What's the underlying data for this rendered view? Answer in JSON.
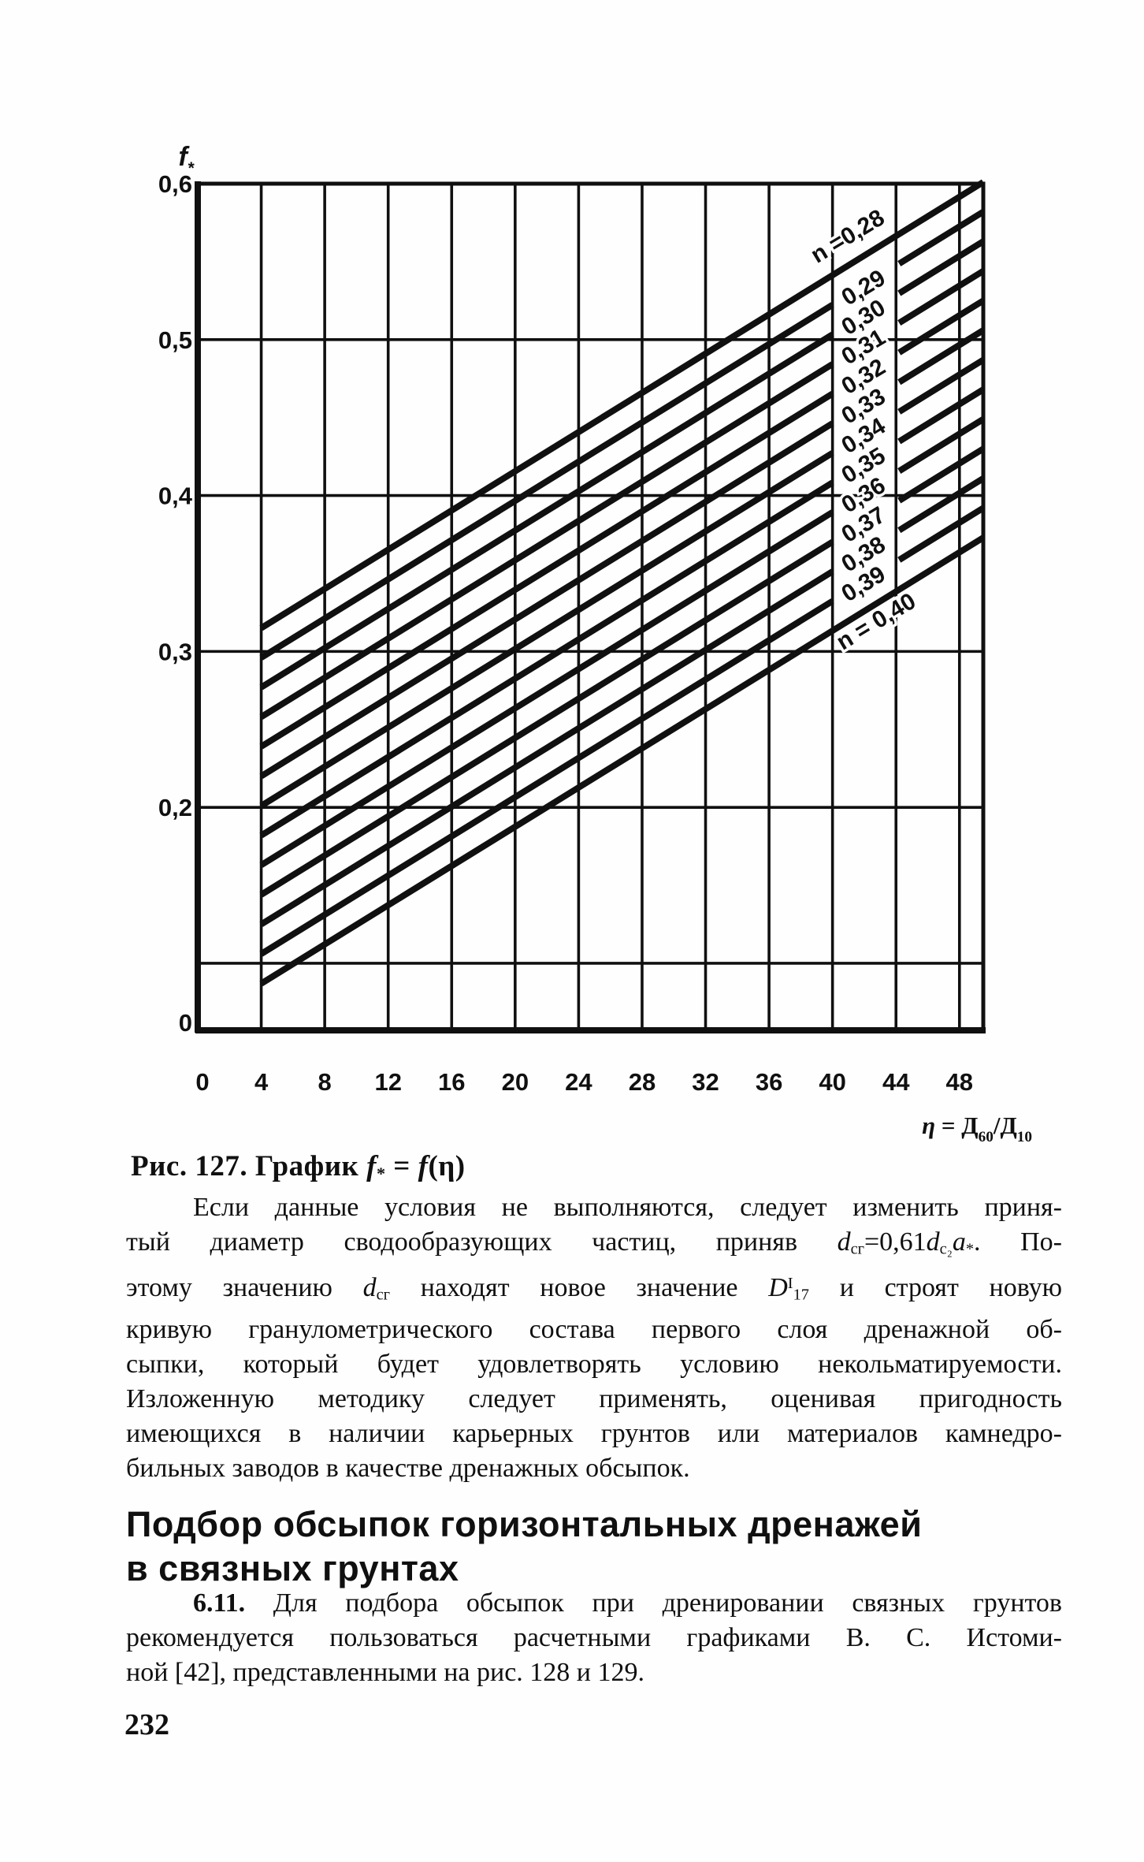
{
  "page": {
    "number": "232",
    "background": "#fefefe",
    "ink": "#101010"
  },
  "caption_parts": [
    {
      "t": "Рис. 127. График ",
      "b": 1
    },
    {
      "t": "f",
      "b": 1,
      "i": 1
    },
    {
      "t": "*",
      "b": 1,
      "sub": 1
    },
    {
      "t": " = ",
      "b": 1
    },
    {
      "t": "f",
      "b": 1,
      "i": 1
    },
    {
      "t": "(η)",
      "b": 1
    }
  ],
  "chart_data": {
    "type": "line",
    "title": "Рис. 127. График f* = f(η)",
    "ylabel": "f*",
    "xlabel": "η = Д60/Д10",
    "ylabel_parts": [
      {
        "t": "f",
        "i": 1
      },
      {
        "t": "*",
        "sub": 1
      }
    ],
    "xlabel_parts": [
      {
        "t": "η",
        "i": 1
      },
      {
        "t": " = Д"
      },
      {
        "t": "60",
        "sub": 1
      },
      {
        "t": "/Д"
      },
      {
        "t": "10",
        "sub": 1
      }
    ],
    "x_range": [
      0,
      49.5
    ],
    "y_range": [
      0.057,
      0.6
    ],
    "grid": true,
    "x_tick_values": [
      0,
      4,
      8,
      12,
      16,
      20,
      24,
      28,
      32,
      36,
      40,
      44,
      48
    ],
    "x_tick_labels": [
      "0",
      "4",
      "8",
      "12",
      "16",
      "20",
      "24",
      "28",
      "32",
      "36",
      "40",
      "44",
      "48"
    ],
    "y_ticks": [
      {
        "label": "0,6",
        "f": 0.6
      },
      {
        "label": "0,5",
        "f": 0.5
      },
      {
        "label": "0,4",
        "f": 0.4
      },
      {
        "label": "0,3",
        "f": 0.3
      },
      {
        "label": "0,2",
        "f": 0.2
      },
      {
        "label": "0",
        "f": 0.062
      }
    ],
    "y_grid": [
      0.5,
      0.4,
      0.3,
      0.2,
      0.1
    ],
    "label_gap_x": [
      40,
      44.2
    ],
    "series": [
      {
        "n": "0,28",
        "x": [
          4,
          49.5
        ],
        "y": [
          0.315,
          0.601
        ],
        "gap": null,
        "label": {
          "text": "n =0,28",
          "eta": 41.2,
          "side": "above"
        }
      },
      {
        "n": "0,29",
        "x": [
          4,
          49.5
        ],
        "y": [
          0.296,
          0.582
        ],
        "gap": [
          40,
          44.2
        ],
        "label": {
          "text": "0,29",
          "eta": 42.2,
          "side": "gap"
        }
      },
      {
        "n": "0,30",
        "x": [
          4,
          49.5
        ],
        "y": [
          0.277,
          0.563
        ],
        "gap": [
          40,
          44.2
        ],
        "label": {
          "text": "0,30",
          "eta": 42.2,
          "side": "gap"
        }
      },
      {
        "n": "0,31",
        "x": [
          4,
          49.5
        ],
        "y": [
          0.258,
          0.544
        ],
        "gap": [
          40,
          44.2
        ],
        "label": {
          "text": "0,31",
          "eta": 42.2,
          "side": "gap"
        }
      },
      {
        "n": "0,32",
        "x": [
          4,
          49.5
        ],
        "y": [
          0.239,
          0.525
        ],
        "gap": [
          40,
          44.2
        ],
        "label": {
          "text": "0,32",
          "eta": 42.2,
          "side": "gap"
        }
      },
      {
        "n": "0,33",
        "x": [
          4,
          49.5
        ],
        "y": [
          0.22,
          0.506
        ],
        "gap": [
          40,
          44.2
        ],
        "label": {
          "text": "0,33",
          "eta": 42.2,
          "side": "gap"
        }
      },
      {
        "n": "0,34",
        "x": [
          4,
          49.5
        ],
        "y": [
          0.201,
          0.487
        ],
        "gap": [
          40,
          44.2
        ],
        "label": {
          "text": "0,34",
          "eta": 42.2,
          "side": "gap"
        }
      },
      {
        "n": "0,35",
        "x": [
          4,
          49.5
        ],
        "y": [
          0.182,
          0.468
        ],
        "gap": [
          40,
          44.2
        ],
        "label": {
          "text": "0,35",
          "eta": 42.2,
          "side": "gap"
        }
      },
      {
        "n": "0,36",
        "x": [
          4,
          49.5
        ],
        "y": [
          0.163,
          0.449
        ],
        "gap": [
          40,
          44.2
        ],
        "label": {
          "text": "0,36",
          "eta": 42.2,
          "side": "gap"
        }
      },
      {
        "n": "0,37",
        "x": [
          4,
          49.5
        ],
        "y": [
          0.144,
          0.43
        ],
        "gap": [
          40,
          44.2
        ],
        "label": {
          "text": "0,37",
          "eta": 42.2,
          "side": "gap"
        }
      },
      {
        "n": "0,38",
        "x": [
          4,
          49.5
        ],
        "y": [
          0.125,
          0.411
        ],
        "gap": [
          40,
          44.2
        ],
        "label": {
          "text": "0,38",
          "eta": 42.2,
          "side": "gap"
        }
      },
      {
        "n": "0,39",
        "x": [
          4,
          49.5
        ],
        "y": [
          0.106,
          0.392
        ],
        "gap": [
          40,
          44.2
        ],
        "label": {
          "text": "0,39",
          "eta": 42.2,
          "side": "gap"
        }
      },
      {
        "n": "0,40",
        "x": [
          4,
          49.5
        ],
        "y": [
          0.087,
          0.373
        ],
        "gap": null,
        "label": {
          "text": "n = 0,40",
          "eta": 43.0,
          "side": "below"
        }
      }
    ]
  },
  "heading": {
    "lines": [
      "Подбор обсыпок горизонтальных дренажей",
      "в связных грунтах"
    ]
  },
  "body": {
    "p1": {
      "lines": [
        {
          "j": 1,
          "indent": 1,
          "parts": [
            {
              "t": "Если данные условия не выполняются, следует изменить приня-"
            }
          ]
        },
        {
          "j": 1,
          "parts": [
            {
              "t": "тый диаметр сводообразующих частиц, приняв "
            },
            {
              "t": "d",
              "i": 1
            },
            {
              "t": "сг",
              "sub": 1
            },
            {
              "t": "="
            },
            {
              "t": "0,61"
            },
            {
              "t": "d",
              "i": 1
            },
            {
              "t": "с₂",
              "sub": 1
            },
            {
              "t": "a",
              "i": 1
            },
            {
              "t": "*",
              "sub": 1
            },
            {
              "t": ". По-"
            }
          ]
        },
        {
          "j": 1,
          "parts": [
            {
              "t": "этому значению "
            },
            {
              "t": "d",
              "i": 1
            },
            {
              "t": "сг",
              "sub": 1
            },
            {
              "t": " находят новое значение "
            },
            {
              "t": "D",
              "i": 1
            },
            {
              "t": "I",
              "sup": 1
            },
            {
              "t": "17",
              "sub": 1
            },
            {
              "t": " и строят новую"
            }
          ]
        },
        {
          "j": 1,
          "parts": [
            {
              "t": "кривую гранулометрического состава первого слоя дренажной об-"
            }
          ]
        },
        {
          "j": 1,
          "parts": [
            {
              "t": "сыпки, который будет удовлетворять условию некольматируемости."
            }
          ]
        },
        {
          "j": 1,
          "parts": [
            {
              "t": "Изложенную методику следует применять, оценивая пригодность"
            }
          ]
        },
        {
          "j": 1,
          "parts": [
            {
              "t": "имеющихся в наличии карьерных грунтов или материалов камнедро-"
            }
          ]
        },
        {
          "j": 0,
          "parts": [
            {
              "t": "бильных заводов в качестве дренажных обсыпок."
            }
          ]
        }
      ]
    },
    "p2": {
      "lines": [
        {
          "j": 1,
          "indent": 1,
          "parts": [
            {
              "t": "6.11.",
              "b": 1
            },
            {
              "t": " Для подбора обсыпок при дренировании связных грунтов"
            }
          ]
        },
        {
          "j": 1,
          "parts": [
            {
              "t": "рекомендуется пользоваться расчетными графиками В. С. Истоми-"
            }
          ]
        },
        {
          "j": 0,
          "parts": [
            {
              "t": "ной [42], представленными на рис. 128 и 129."
            }
          ]
        }
      ]
    }
  }
}
